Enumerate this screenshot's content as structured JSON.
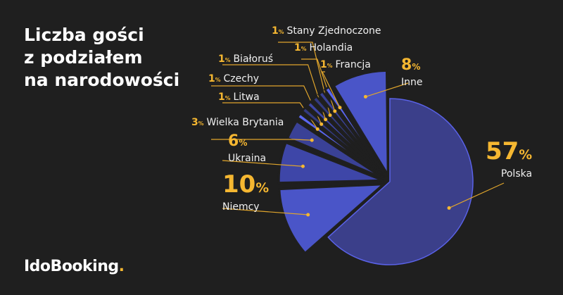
{
  "title": [
    "Liczba gości",
    "z podziałem",
    "na narodowości"
  ],
  "logo": {
    "text": "IdoBooking",
    "dot": "."
  },
  "colors": {
    "background": "#1f1f1f",
    "accent": "#f5b731",
    "polska": "#3b3f8a"
  },
  "chart_data": {
    "type": "pie",
    "unit": "%",
    "slices": [
      {
        "label": "Polska",
        "value": 57,
        "color": "#3b3f8a"
      },
      {
        "label": "Niemcy",
        "value": 10,
        "color": "#4a55c8"
      },
      {
        "label": "Ukraina",
        "value": 6,
        "color": "#3e46a8"
      },
      {
        "label": "Wielka Brytania",
        "value": 3,
        "color": "#3a4196"
      },
      {
        "label": "Litwa",
        "value": 1,
        "color": "#5a66f0"
      },
      {
        "label": "Czechy",
        "value": 1,
        "color": "#333a80"
      },
      {
        "label": "Białoruś",
        "value": 1,
        "color": "#3e46a8"
      },
      {
        "label": "Stany Zjednoczone",
        "value": 1,
        "color": "#333a80"
      },
      {
        "label": "Holandia",
        "value": 1,
        "color": "#3a4196"
      },
      {
        "label": "Francja",
        "value": 1,
        "color": "#5a66f0"
      },
      {
        "label": "Inne",
        "value": 8,
        "color": "#4a55c8"
      }
    ]
  }
}
